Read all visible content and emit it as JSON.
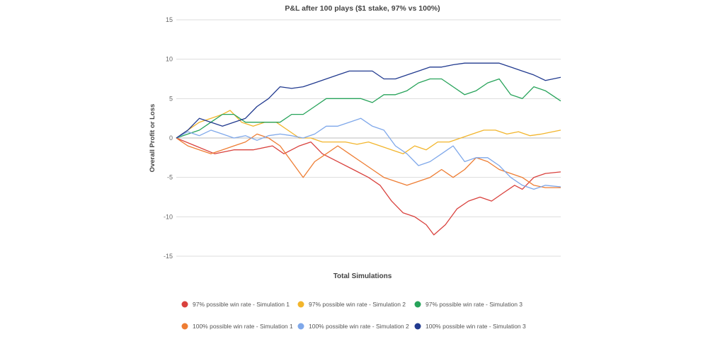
{
  "chart_data": {
    "type": "line",
    "title": "P&L after 100 plays ($1 stake, 97% vs 100%)",
    "xlabel": "Total Simulations",
    "ylabel": "Overall Profit or Loss",
    "ylim": [
      -15,
      15
    ],
    "yticks": [
      15,
      10,
      5,
      0,
      -5,
      -10,
      -15
    ],
    "xlim": [
      0,
      100
    ],
    "grid": true,
    "legend_position": "bottom",
    "series": [
      {
        "name": "97% possible win rate - Simulation 1",
        "color": "#d9413d",
        "points": [
          [
            0,
            0
          ],
          [
            5,
            -1
          ],
          [
            10,
            -2
          ],
          [
            15,
            -1.5
          ],
          [
            20,
            -1.5
          ],
          [
            25,
            -1
          ],
          [
            28,
            -2
          ],
          [
            32,
            -1
          ],
          [
            35,
            -0.5
          ],
          [
            38,
            -2
          ],
          [
            42,
            -3
          ],
          [
            46,
            -4
          ],
          [
            50,
            -5
          ],
          [
            53,
            -6
          ],
          [
            56,
            -8
          ],
          [
            59,
            -9.5
          ],
          [
            62,
            -10
          ],
          [
            65,
            -11
          ],
          [
            67,
            -12.3
          ],
          [
            70,
            -11
          ],
          [
            73,
            -9
          ],
          [
            76,
            -8
          ],
          [
            79,
            -7.5
          ],
          [
            82,
            -8
          ],
          [
            85,
            -7
          ],
          [
            88,
            -6
          ],
          [
            90,
            -6.5
          ],
          [
            93,
            -5
          ],
          [
            96,
            -4.5
          ],
          [
            100,
            -4.3
          ]
        ]
      },
      {
        "name": "97% possible win rate - Simulation 2",
        "color": "#f2b52c",
        "points": [
          [
            0,
            0
          ],
          [
            3,
            1
          ],
          [
            6,
            2
          ],
          [
            9,
            2.5
          ],
          [
            12,
            3
          ],
          [
            14,
            3.5
          ],
          [
            17,
            2
          ],
          [
            20,
            1.5
          ],
          [
            23,
            2
          ],
          [
            26,
            2
          ],
          [
            29,
            1
          ],
          [
            32,
            0
          ],
          [
            35,
            0
          ],
          [
            38,
            -0.5
          ],
          [
            41,
            -0.5
          ],
          [
            44,
            -0.5
          ],
          [
            47,
            -0.8
          ],
          [
            50,
            -0.5
          ],
          [
            53,
            -1
          ],
          [
            56,
            -1.5
          ],
          [
            59,
            -2
          ],
          [
            62,
            -1
          ],
          [
            65,
            -1.5
          ],
          [
            68,
            -0.5
          ],
          [
            71,
            -0.5
          ],
          [
            74,
            0
          ],
          [
            77,
            0.5
          ],
          [
            80,
            1
          ],
          [
            83,
            1
          ],
          [
            86,
            0.5
          ],
          [
            89,
            0.8
          ],
          [
            92,
            0.3
          ],
          [
            95,
            0.5
          ],
          [
            100,
            1
          ]
        ]
      },
      {
        "name": "97% possible win rate - Simulation 3",
        "color": "#27a35a",
        "points": [
          [
            0,
            0
          ],
          [
            3,
            0.5
          ],
          [
            6,
            1
          ],
          [
            9,
            2
          ],
          [
            12,
            3
          ],
          [
            15,
            3
          ],
          [
            18,
            2
          ],
          [
            21,
            2
          ],
          [
            24,
            2
          ],
          [
            27,
            2
          ],
          [
            30,
            3
          ],
          [
            33,
            3
          ],
          [
            36,
            4
          ],
          [
            39,
            5
          ],
          [
            42,
            5
          ],
          [
            45,
            5
          ],
          [
            48,
            5
          ],
          [
            51,
            4.5
          ],
          [
            54,
            5.5
          ],
          [
            57,
            5.5
          ],
          [
            60,
            6
          ],
          [
            63,
            7
          ],
          [
            66,
            7.5
          ],
          [
            69,
            7.5
          ],
          [
            72,
            6.5
          ],
          [
            75,
            5.5
          ],
          [
            78,
            6
          ],
          [
            81,
            7
          ],
          [
            84,
            7.5
          ],
          [
            87,
            5.5
          ],
          [
            90,
            5
          ],
          [
            93,
            6.5
          ],
          [
            96,
            6
          ],
          [
            100,
            4.7
          ]
        ]
      },
      {
        "name": "100% possible win rate - Simulation 1",
        "color": "#ee7d33",
        "points": [
          [
            0,
            0
          ],
          [
            3,
            -1
          ],
          [
            6,
            -1.5
          ],
          [
            9,
            -2
          ],
          [
            12,
            -1.5
          ],
          [
            15,
            -1
          ],
          [
            18,
            -0.5
          ],
          [
            21,
            0.5
          ],
          [
            24,
            0
          ],
          [
            27,
            -1
          ],
          [
            30,
            -3
          ],
          [
            33,
            -5
          ],
          [
            36,
            -3
          ],
          [
            39,
            -2
          ],
          [
            42,
            -1
          ],
          [
            45,
            -2
          ],
          [
            48,
            -3
          ],
          [
            51,
            -4
          ],
          [
            54,
            -5
          ],
          [
            57,
            -5.5
          ],
          [
            60,
            -6
          ],
          [
            63,
            -5.5
          ],
          [
            66,
            -5
          ],
          [
            69,
            -4
          ],
          [
            72,
            -5
          ],
          [
            75,
            -4
          ],
          [
            78,
            -2.5
          ],
          [
            81,
            -3
          ],
          [
            84,
            -4
          ],
          [
            87,
            -4.5
          ],
          [
            90,
            -5
          ],
          [
            93,
            -6
          ],
          [
            96,
            -6.3
          ],
          [
            100,
            -6.3
          ]
        ]
      },
      {
        "name": "100% possible win rate - Simulation 2",
        "color": "#7fa8ea",
        "points": [
          [
            0,
            0
          ],
          [
            3,
            0.8
          ],
          [
            6,
            0.3
          ],
          [
            9,
            1
          ],
          [
            12,
            0.5
          ],
          [
            15,
            0
          ],
          [
            18,
            0.3
          ],
          [
            21,
            -0.3
          ],
          [
            24,
            0.3
          ],
          [
            27,
            0.5
          ],
          [
            30,
            0.3
          ],
          [
            33,
            0
          ],
          [
            36,
            0.5
          ],
          [
            39,
            1.5
          ],
          [
            42,
            1.5
          ],
          [
            45,
            2
          ],
          [
            48,
            2.5
          ],
          [
            51,
            1.5
          ],
          [
            54,
            1
          ],
          [
            57,
            -1
          ],
          [
            60,
            -2
          ],
          [
            63,
            -3.5
          ],
          [
            66,
            -3
          ],
          [
            69,
            -2
          ],
          [
            72,
            -1
          ],
          [
            75,
            -3
          ],
          [
            78,
            -2.5
          ],
          [
            81,
            -2.5
          ],
          [
            84,
            -3.5
          ],
          [
            87,
            -5
          ],
          [
            90,
            -6
          ],
          [
            93,
            -6.5
          ],
          [
            96,
            -6
          ],
          [
            100,
            -6.2
          ]
        ]
      },
      {
        "name": "100% possible win rate - Simulation 3",
        "color": "#213a8f",
        "points": [
          [
            0,
            0
          ],
          [
            3,
            1
          ],
          [
            6,
            2.5
          ],
          [
            9,
            2
          ],
          [
            12,
            1.5
          ],
          [
            15,
            2
          ],
          [
            18,
            2.5
          ],
          [
            21,
            4
          ],
          [
            24,
            5
          ],
          [
            27,
            6.5
          ],
          [
            30,
            6.3
          ],
          [
            33,
            6.5
          ],
          [
            36,
            7
          ],
          [
            39,
            7.5
          ],
          [
            42,
            8
          ],
          [
            45,
            8.5
          ],
          [
            48,
            8.5
          ],
          [
            51,
            8.5
          ],
          [
            54,
            7.5
          ],
          [
            57,
            7.5
          ],
          [
            60,
            8
          ],
          [
            63,
            8.5
          ],
          [
            66,
            9
          ],
          [
            69,
            9
          ],
          [
            72,
            9.3
          ],
          [
            75,
            9.5
          ],
          [
            78,
            9.5
          ],
          [
            81,
            9.5
          ],
          [
            84,
            9.5
          ],
          [
            87,
            9
          ],
          [
            90,
            8.5
          ],
          [
            93,
            8
          ],
          [
            96,
            7.3
          ],
          [
            100,
            7.7
          ]
        ]
      }
    ]
  }
}
